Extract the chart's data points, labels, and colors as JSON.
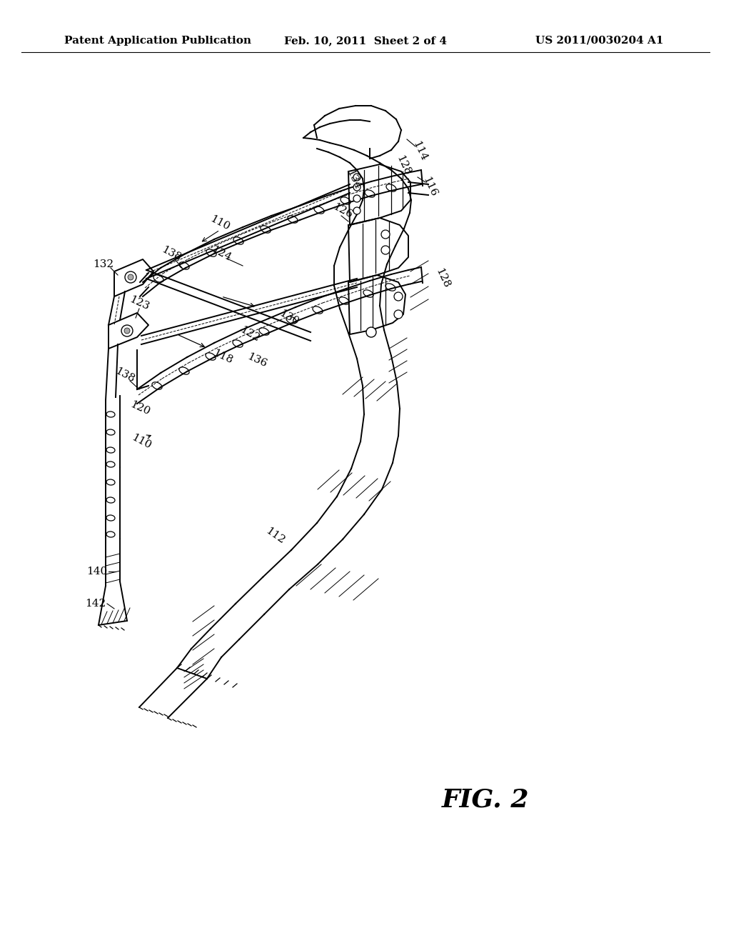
{
  "background_color": "#ffffff",
  "header_left": "Patent Application Publication",
  "header_center": "Feb. 10, 2011  Sheet 2 of 4",
  "header_right": "US 2011/0030204 A1",
  "figure_label": "FIG. 2",
  "line_color": "#000000",
  "text_color": "#000000",
  "header_fontsize": 11,
  "label_fontsize": 11,
  "fig_label_fontsize": 26
}
